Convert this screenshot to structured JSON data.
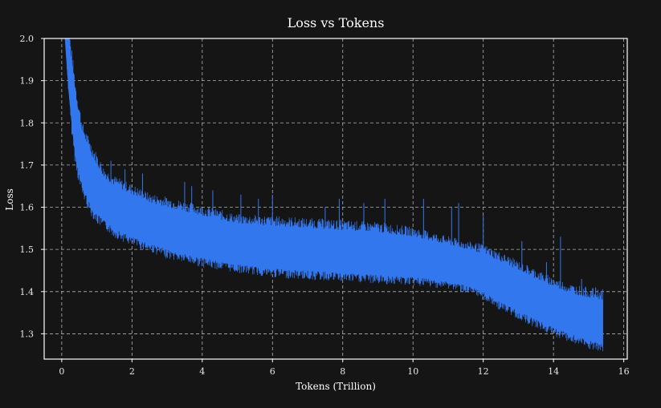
{
  "colors": {
    "background": "#151515",
    "plot_border": "#ffffff",
    "series": "#3377ee",
    "text": "#ffffff",
    "grid": "#cfcfcf"
  },
  "chart_data": {
    "type": "line",
    "title": "Loss vs Tokens",
    "xlabel": "Tokens (Trillion)",
    "ylabel": "Loss",
    "xlim": [
      -0.5,
      16.1
    ],
    "ylim": [
      1.24,
      2.0
    ],
    "xticks": [
      0,
      2,
      4,
      6,
      8,
      10,
      12,
      14,
      16
    ],
    "yticks": [
      1.3,
      1.4,
      1.5,
      1.6,
      1.7,
      1.8,
      1.9,
      2.0
    ],
    "xtick_labels": [
      "0",
      "2",
      "4",
      "6",
      "8",
      "10",
      "12",
      "14",
      "16"
    ],
    "ytick_labels": [
      "1.3",
      "1.4",
      "1.5",
      "1.6",
      "1.7",
      "1.8",
      "1.9",
      "2.0"
    ],
    "grid": true,
    "legend": "none",
    "series": [
      {
        "x": [
          0.1,
          0.2,
          0.3,
          0.4,
          0.5,
          0.6,
          0.8,
          1.0,
          1.2,
          1.5,
          2.0,
          2.5,
          3.0,
          3.5,
          4.0,
          5.0,
          6.0,
          7.0,
          8.0,
          9.0,
          10.0,
          10.5,
          11.0,
          11.5,
          12.0,
          12.5,
          13.0,
          13.5,
          14.0,
          14.5,
          15.0,
          15.4
        ],
        "upper": [
          2.0,
          2.0,
          1.93,
          1.86,
          1.81,
          1.77,
          1.73,
          1.7,
          1.67,
          1.65,
          1.63,
          1.61,
          1.6,
          1.59,
          1.58,
          1.56,
          1.555,
          1.55,
          1.545,
          1.54,
          1.53,
          1.52,
          1.51,
          1.5,
          1.49,
          1.47,
          1.45,
          1.43,
          1.41,
          1.395,
          1.385,
          1.38
        ],
        "lower": [
          2.0,
          1.88,
          1.79,
          1.72,
          1.68,
          1.65,
          1.61,
          1.585,
          1.57,
          1.55,
          1.53,
          1.515,
          1.5,
          1.49,
          1.48,
          1.465,
          1.455,
          1.45,
          1.445,
          1.44,
          1.435,
          1.43,
          1.425,
          1.415,
          1.4,
          1.375,
          1.355,
          1.335,
          1.315,
          1.3,
          1.285,
          1.275
        ],
        "spikes": [
          [
            0.5,
            1.83
          ],
          [
            0.8,
            1.75
          ],
          [
            1.0,
            1.72
          ],
          [
            1.4,
            1.71
          ],
          [
            1.8,
            1.69
          ],
          [
            2.3,
            1.68
          ],
          [
            3.5,
            1.66
          ],
          [
            3.7,
            1.65
          ],
          [
            4.3,
            1.64
          ],
          [
            5.1,
            1.63
          ],
          [
            5.6,
            1.62
          ],
          [
            6.0,
            1.63
          ],
          [
            7.5,
            1.6
          ],
          [
            7.9,
            1.62
          ],
          [
            8.6,
            1.61
          ],
          [
            9.2,
            1.62
          ],
          [
            10.3,
            1.62
          ],
          [
            11.1,
            1.6
          ],
          [
            11.3,
            1.61
          ],
          [
            12.0,
            1.58
          ],
          [
            13.1,
            1.52
          ],
          [
            13.8,
            1.47
          ],
          [
            14.2,
            1.53
          ],
          [
            14.8,
            1.43
          ],
          [
            15.2,
            1.41
          ]
        ]
      }
    ]
  }
}
